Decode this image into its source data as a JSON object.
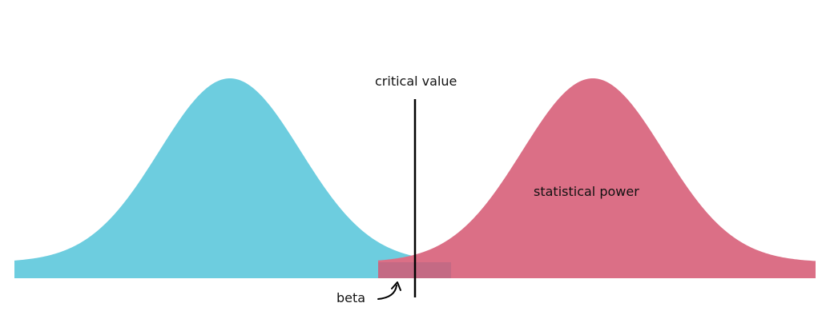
{
  "labels": {
    "critical_value": "critical value",
    "statistical_power": "statistical power",
    "beta": "beta"
  },
  "colors": {
    "null_distribution": "#6dcddf",
    "alternative_distribution": "#db6f86",
    "beta_overlap": "#c46a84",
    "critical_line": "#000000",
    "text": "#111111"
  },
  "icons": {
    "beta_pointer": "curved-arrow-icon"
  }
}
